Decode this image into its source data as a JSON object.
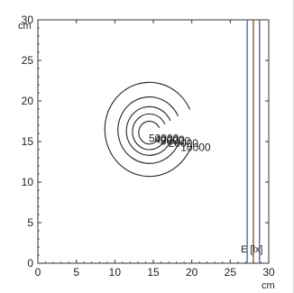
{
  "chart_data": {
    "type": "contour",
    "xlim": [
      0,
      30
    ],
    "ylim": [
      0,
      30
    ],
    "x_ticks": [
      0,
      5,
      10,
      15,
      20,
      25,
      30
    ],
    "y_ticks": [
      0,
      5,
      10,
      15,
      20,
      25,
      30
    ],
    "x_unit": "cm",
    "y_unit": "cm",
    "grid": false,
    "contours": [
      {
        "level": "10000",
        "center": [
          14.5,
          16.5
        ],
        "r": 5.8
      },
      {
        "level": "20000",
        "center": [
          14.5,
          16.4
        ],
        "r": 4.1
      },
      {
        "level": "30000",
        "center": [
          14.5,
          16.3
        ],
        "r": 3.0
      },
      {
        "level": "40000",
        "center": [
          14.5,
          16.2
        ],
        "r": 2.2
      },
      {
        "level": "50000",
        "center": [
          14.5,
          16.1
        ],
        "r": 1.4
      }
    ],
    "edge_lines": [
      {
        "x": 27.2,
        "y_from": 0,
        "y_to": 30,
        "color": "#4a6fa5"
      },
      {
        "x": 28.0,
        "y_from": 0,
        "y_to": 30,
        "color": "#8b5a2b"
      },
      {
        "x": 28.8,
        "y_from": 0,
        "y_to": 30,
        "color": "#4a6fa5"
      }
    ],
    "annotation": "E [lx]"
  }
}
